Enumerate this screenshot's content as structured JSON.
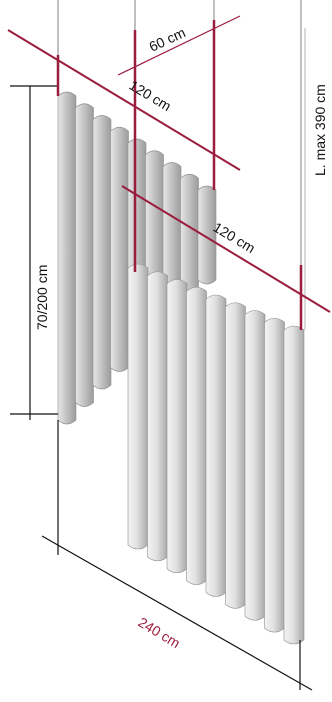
{
  "dimensions": {
    "width_top": "60 cm",
    "depth_upper": "120 cm",
    "depth_lower": "120 cm",
    "height_panel": "70/200 cm",
    "length_max": "L. max 390 cm",
    "width_bottom": "240 cm"
  },
  "colors": {
    "accent": "#9b1c3c",
    "line": "#111111",
    "panel_light": "#e9e9e9",
    "panel_mid": "#cfcfcf",
    "panel_dark": "#a9a9a9",
    "cable": "#bdbdbd"
  }
}
